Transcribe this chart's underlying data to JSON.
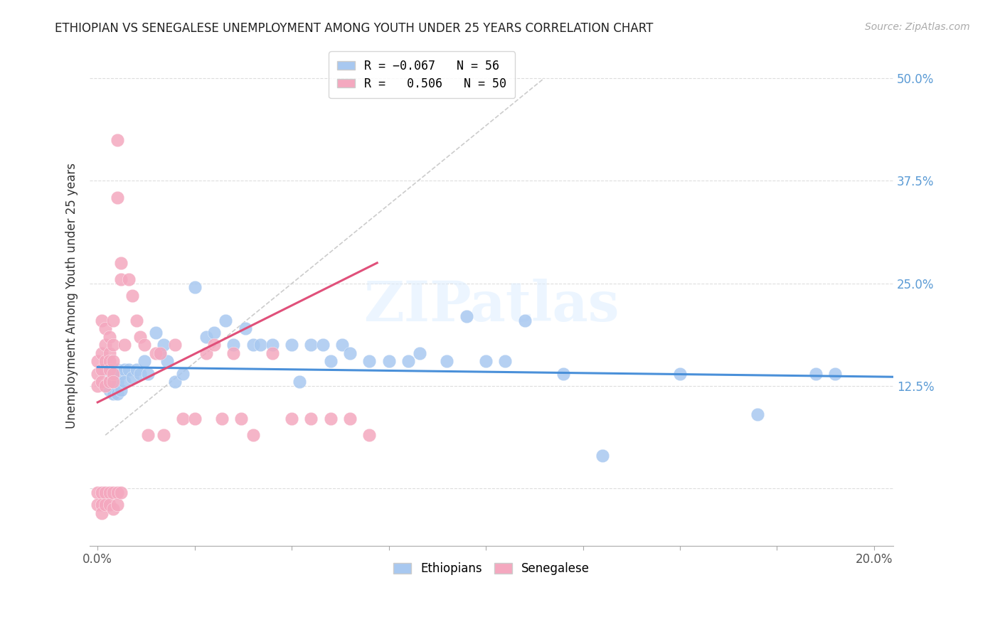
{
  "title": "ETHIOPIAN VS SENEGALESE UNEMPLOYMENT AMONG YOUTH UNDER 25 YEARS CORRELATION CHART",
  "source": "Source: ZipAtlas.com",
  "ylabel": "Unemployment Among Youth under 25 years",
  "x_ticks": [
    0.0,
    0.025,
    0.05,
    0.075,
    0.1,
    0.125,
    0.15,
    0.175,
    0.2
  ],
  "y_ticks": [
    0.0,
    0.125,
    0.25,
    0.375,
    0.5
  ],
  "y_tick_labels": [
    "",
    "12.5%",
    "25.0%",
    "37.5%",
    "50.0%"
  ],
  "xlim": [
    -0.002,
    0.205
  ],
  "ylim": [
    -0.07,
    0.54
  ],
  "watermark": "ZIPatlas",
  "blue_color": "#a8c8f0",
  "pink_color": "#f4a8bf",
  "blue_line_color": "#4a90d9",
  "pink_line_color": "#e0507a",
  "dashed_line_color": "#cccccc",
  "ethiopians_x": [
    0.002,
    0.003,
    0.003,
    0.004,
    0.004,
    0.004,
    0.005,
    0.005,
    0.005,
    0.006,
    0.006,
    0.007,
    0.007,
    0.008,
    0.009,
    0.01,
    0.011,
    0.012,
    0.013,
    0.015,
    0.016,
    0.017,
    0.018,
    0.02,
    0.022,
    0.025,
    0.028,
    0.03,
    0.033,
    0.035,
    0.038,
    0.04,
    0.042,
    0.045,
    0.05,
    0.052,
    0.055,
    0.058,
    0.06,
    0.063,
    0.065,
    0.07,
    0.075,
    0.08,
    0.083,
    0.09,
    0.095,
    0.1,
    0.105,
    0.11,
    0.12,
    0.13,
    0.15,
    0.17,
    0.185,
    0.19
  ],
  "ethiopians_y": [
    0.145,
    0.13,
    0.12,
    0.14,
    0.12,
    0.115,
    0.145,
    0.13,
    0.115,
    0.14,
    0.12,
    0.145,
    0.13,
    0.145,
    0.135,
    0.145,
    0.14,
    0.155,
    0.14,
    0.19,
    0.165,
    0.175,
    0.155,
    0.13,
    0.14,
    0.245,
    0.185,
    0.19,
    0.205,
    0.175,
    0.195,
    0.175,
    0.175,
    0.175,
    0.175,
    0.13,
    0.175,
    0.175,
    0.155,
    0.175,
    0.165,
    0.155,
    0.155,
    0.155,
    0.165,
    0.155,
    0.21,
    0.155,
    0.155,
    0.205,
    0.14,
    0.04,
    0.14,
    0.09,
    0.14,
    0.14
  ],
  "senegalese_x": [
    0.0,
    0.0,
    0.0,
    0.001,
    0.001,
    0.001,
    0.001,
    0.002,
    0.002,
    0.002,
    0.002,
    0.003,
    0.003,
    0.003,
    0.003,
    0.003,
    0.004,
    0.004,
    0.004,
    0.004,
    0.004,
    0.005,
    0.005,
    0.006,
    0.006,
    0.007,
    0.008,
    0.009,
    0.01,
    0.011,
    0.012,
    0.013,
    0.015,
    0.016,
    0.017,
    0.02,
    0.022,
    0.025,
    0.028,
    0.03,
    0.032,
    0.035,
    0.037,
    0.04,
    0.045,
    0.05,
    0.055,
    0.06,
    0.065,
    0.07
  ],
  "senegalese_y": [
    0.155,
    0.14,
    0.125,
    0.205,
    0.165,
    0.145,
    0.13,
    0.195,
    0.175,
    0.155,
    0.125,
    0.185,
    0.165,
    0.155,
    0.145,
    0.13,
    0.205,
    0.175,
    0.155,
    0.14,
    0.13,
    0.425,
    0.355,
    0.275,
    0.255,
    0.175,
    0.255,
    0.235,
    0.205,
    0.185,
    0.175,
    0.065,
    0.165,
    0.165,
    0.065,
    0.175,
    0.085,
    0.085,
    0.165,
    0.175,
    0.085,
    0.165,
    0.085,
    0.065,
    0.165,
    0.085,
    0.085,
    0.085,
    0.085,
    0.065
  ],
  "senegalese_neg_x": [
    0.0,
    0.0,
    0.001,
    0.001,
    0.001,
    0.002,
    0.002,
    0.003,
    0.003,
    0.004,
    0.004,
    0.005,
    0.005,
    0.006
  ],
  "senegalese_neg_y": [
    -0.005,
    -0.02,
    -0.005,
    -0.02,
    -0.03,
    -0.005,
    -0.02,
    -0.005,
    -0.02,
    -0.005,
    -0.025,
    -0.005,
    -0.02,
    -0.005
  ],
  "blue_trendline": {
    "x": [
      0.0,
      0.205
    ],
    "y": [
      0.148,
      0.136
    ]
  },
  "pink_trendline": {
    "x": [
      0.0,
      0.072
    ],
    "y": [
      0.105,
      0.275
    ]
  },
  "dashed_line": {
    "x": [
      0.002,
      0.115
    ],
    "y": [
      0.065,
      0.5
    ]
  }
}
